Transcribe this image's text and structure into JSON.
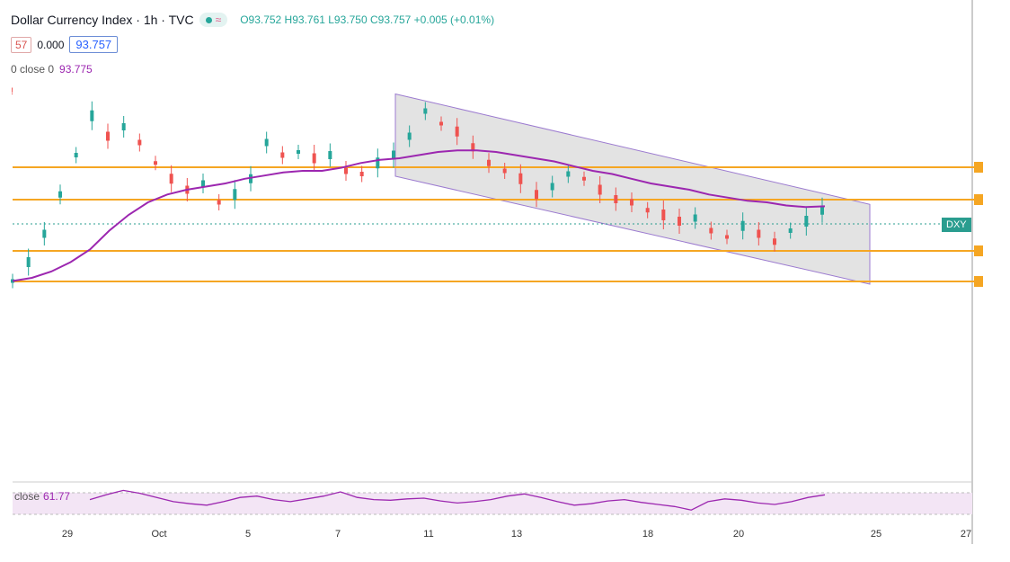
{
  "header": {
    "title": "Dollar Currency Index · 1h · TVC",
    "ohlc": "O93.752 H93.761 L93.750 C93.757 +0.005 (+0.01%)",
    "row2": {
      "a": "57",
      "b": "0.000",
      "c": "93.757"
    },
    "row3": {
      "label": "0 close 0",
      "value": "93.775"
    },
    "row4": "!"
  },
  "symbol_badge": "DXY",
  "rsi": {
    "label": "close",
    "value": "61.77"
  },
  "chart_data": {
    "type": "line",
    "subtype": "candlestick-approx",
    "x_ticks": [
      "29",
      "Oct",
      "5",
      "7",
      "11",
      "13",
      "18",
      "20",
      "25",
      "27"
    ],
    "price_close_series": [
      93.3,
      93.42,
      93.6,
      93.85,
      94.1,
      94.35,
      94.22,
      94.28,
      94.18,
      94.05,
      93.95,
      93.88,
      93.92,
      93.8,
      93.85,
      93.95,
      94.18,
      94.1,
      94.12,
      94.08,
      94.1,
      94.0,
      93.98,
      94.05,
      94.1,
      94.22,
      94.38,
      94.3,
      94.25,
      94.15,
      94.05,
      94.0,
      93.95,
      93.85,
      93.9,
      93.98,
      93.95,
      93.88,
      93.82,
      93.8,
      93.75,
      93.72,
      93.68,
      93.7,
      93.62,
      93.58,
      93.65,
      93.6,
      93.55,
      93.62,
      93.68,
      93.75
    ],
    "ma_series": [
      93.3,
      93.32,
      93.36,
      93.42,
      93.5,
      93.62,
      93.72,
      93.8,
      93.85,
      93.88,
      93.9,
      93.92,
      93.95,
      93.97,
      93.99,
      94.0,
      94.0,
      94.02,
      94.05,
      94.07,
      94.08,
      94.1,
      94.12,
      94.13,
      94.13,
      94.12,
      94.1,
      94.08,
      94.06,
      94.03,
      94.0,
      93.98,
      93.95,
      93.92,
      93.9,
      93.88,
      93.85,
      93.83,
      93.81,
      93.8,
      93.78,
      93.77,
      93.775
    ],
    "horizontal_levels": [
      94.08,
      93.98,
      93.78,
      93.68
    ],
    "channel": {
      "upper": [
        94.26,
        93.77
      ],
      "lower": [
        94.0,
        93.52
      ]
    },
    "ylim": [
      93.2,
      94.4
    ],
    "rsi_series": [
      55,
      62,
      68,
      64,
      58,
      52,
      49,
      47,
      52,
      58,
      60,
      55,
      52,
      56,
      60,
      66,
      58,
      55,
      54,
      56,
      57,
      53,
      50,
      52,
      55,
      60,
      63,
      58,
      52,
      47,
      49,
      53,
      55,
      51,
      48,
      45,
      40,
      52,
      56,
      54,
      50,
      48,
      52,
      58,
      61.77
    ],
    "colors": {
      "ma": "#9c27b0",
      "level": "#f5a623",
      "channel_fill": "#d9d9d9",
      "channel_line": "#9c7bd0",
      "bull": "#26a69a",
      "bear": "#ef5350",
      "rsi_band": "#f3e5f5"
    }
  }
}
